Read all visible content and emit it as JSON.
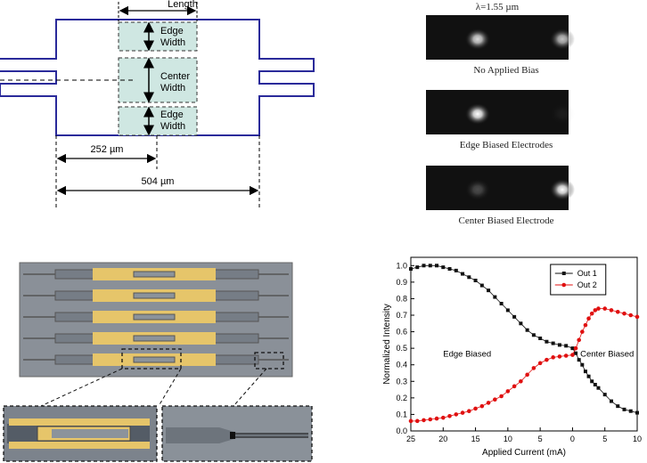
{
  "diagram": {
    "length_label": "Length",
    "edge_width_label_1": "Edge",
    "edge_width_label_2": "Width",
    "center_width_label_1": "Center",
    "center_width_label_2": "Width",
    "half_length_label": "252 µm",
    "full_length_label": "504 µm"
  },
  "modes": {
    "wavelength_label": "λ=1.55 µm",
    "panels": [
      {
        "caption": "No Applied Bias",
        "left_spot": 0.85,
        "right_spot": 0.75
      },
      {
        "caption": "Edge Biased Electrodes",
        "left_spot": 1.0,
        "right_spot": 0.05
      },
      {
        "caption": "Center Biased Electrode",
        "left_spot": 0.25,
        "right_spot": 1.0
      }
    ]
  },
  "micrograph": {
    "device_rows": 5
  },
  "colors": {
    "outline": "#2a2a9a",
    "electrode_fill": "#cfe7e2",
    "gold": "#e6c56a",
    "series1": "#111111",
    "series2": "#e01010"
  },
  "chart_data": {
    "type": "scatter",
    "xlabel": "Applied Current (mA)",
    "ylabel": "Normalized Intensity",
    "xlim": [
      -25,
      10
    ],
    "ylim": [
      0.0,
      1.05
    ],
    "x_ticks": [
      -25,
      -20,
      -15,
      -10,
      -5,
      0,
      5,
      10
    ],
    "x_tick_labels": [
      "25",
      "20",
      "15",
      "10",
      "5",
      "0",
      "5",
      "10"
    ],
    "y_ticks": [
      0.0,
      0.1,
      0.2,
      0.3,
      0.4,
      0.5,
      0.6,
      0.7,
      0.8,
      0.9,
      1.0
    ],
    "y_tick_labels": [
      "0.0",
      "0.1",
      "0.2",
      "0.3",
      "0.4",
      "0.5",
      "0.6",
      "0.7",
      "0.8",
      "0.9",
      "1.0"
    ],
    "legend_position": "top-right",
    "annotations": {
      "left": "Edge Biased",
      "right": "Center Biased"
    },
    "series": [
      {
        "name": "Out 1",
        "color": "#111111",
        "marker": "square",
        "points": [
          [
            -25,
            0.98
          ],
          [
            -24,
            0.99
          ],
          [
            -23,
            1.0
          ],
          [
            -22,
            1.0
          ],
          [
            -21,
            1.0
          ],
          [
            -20,
            0.99
          ],
          [
            -19,
            0.98
          ],
          [
            -18,
            0.97
          ],
          [
            -17,
            0.95
          ],
          [
            -16,
            0.93
          ],
          [
            -15,
            0.91
          ],
          [
            -14,
            0.88
          ],
          [
            -13,
            0.85
          ],
          [
            -12,
            0.81
          ],
          [
            -11,
            0.77
          ],
          [
            -10,
            0.73
          ],
          [
            -9,
            0.69
          ],
          [
            -8,
            0.65
          ],
          [
            -7,
            0.61
          ],
          [
            -6,
            0.58
          ],
          [
            -5,
            0.56
          ],
          [
            -4,
            0.54
          ],
          [
            -3,
            0.53
          ],
          [
            -2,
            0.52
          ],
          [
            -1,
            0.515
          ],
          [
            0,
            0.5
          ],
          [
            0.5,
            0.47
          ],
          [
            1,
            0.43
          ],
          [
            1.5,
            0.4
          ],
          [
            2,
            0.36
          ],
          [
            2.5,
            0.33
          ],
          [
            3,
            0.3
          ],
          [
            3.5,
            0.28
          ],
          [
            4,
            0.26
          ],
          [
            5,
            0.22
          ],
          [
            6,
            0.18
          ],
          [
            7,
            0.15
          ],
          [
            8,
            0.13
          ],
          [
            9,
            0.12
          ],
          [
            10,
            0.11
          ]
        ]
      },
      {
        "name": "Out 2",
        "color": "#e01010",
        "marker": "circle",
        "points": [
          [
            -25,
            0.06
          ],
          [
            -24,
            0.06
          ],
          [
            -23,
            0.065
          ],
          [
            -22,
            0.07
          ],
          [
            -21,
            0.075
          ],
          [
            -20,
            0.08
          ],
          [
            -19,
            0.09
          ],
          [
            -18,
            0.1
          ],
          [
            -17,
            0.11
          ],
          [
            -16,
            0.12
          ],
          [
            -15,
            0.135
          ],
          [
            -14,
            0.15
          ],
          [
            -13,
            0.17
          ],
          [
            -12,
            0.19
          ],
          [
            -11,
            0.21
          ],
          [
            -10,
            0.24
          ],
          [
            -9,
            0.27
          ],
          [
            -8,
            0.3
          ],
          [
            -7,
            0.34
          ],
          [
            -6,
            0.38
          ],
          [
            -5,
            0.41
          ],
          [
            -4,
            0.43
          ],
          [
            -3,
            0.445
          ],
          [
            -2,
            0.45
          ],
          [
            -1,
            0.455
          ],
          [
            0,
            0.46
          ],
          [
            0.5,
            0.5
          ],
          [
            1,
            0.55
          ],
          [
            1.5,
            0.6
          ],
          [
            2,
            0.64
          ],
          [
            2.5,
            0.68
          ],
          [
            3,
            0.71
          ],
          [
            3.5,
            0.73
          ],
          [
            4,
            0.74
          ],
          [
            5,
            0.74
          ],
          [
            6,
            0.73
          ],
          [
            7,
            0.72
          ],
          [
            8,
            0.71
          ],
          [
            9,
            0.7
          ],
          [
            10,
            0.69
          ]
        ]
      }
    ]
  }
}
